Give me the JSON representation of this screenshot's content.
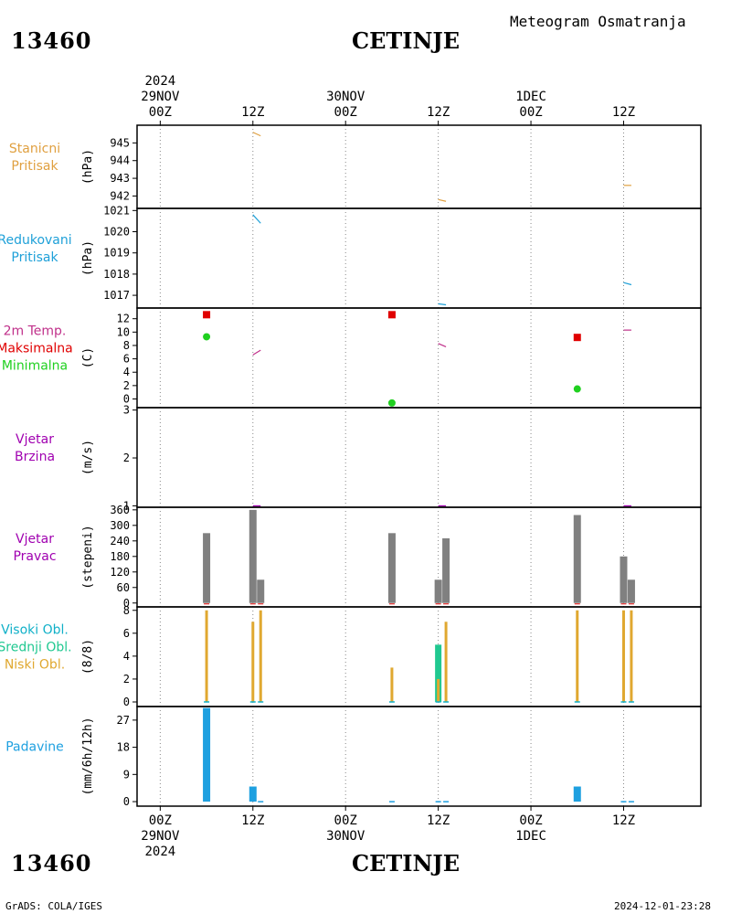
{
  "header": {
    "station_id": "13460",
    "city": "CETINJE",
    "title": "Meteogram Osmatranja"
  },
  "footer": {
    "station_id": "13460",
    "city": "CETINJE",
    "credit": "GrADS: COLA/IGES",
    "timestamp": "2024-12-01-23:28"
  },
  "time_axis": {
    "year": "2024",
    "ticks": [
      {
        "t": 0,
        "hour": "00Z",
        "date": "29NOV"
      },
      {
        "t": 12,
        "hour": "12Z",
        "date": ""
      },
      {
        "t": 24,
        "hour": "00Z",
        "date": "30NOV"
      },
      {
        "t": 36,
        "hour": "12Z",
        "date": ""
      },
      {
        "t": 48,
        "hour": "00Z",
        "date": "1DEC"
      },
      {
        "t": 60,
        "hour": "12Z",
        "date": ""
      }
    ],
    "t_min": -3,
    "t_max": 70
  },
  "colors": {
    "pressure": "#e0a040",
    "reduced": "#1ea0d8",
    "temp": "#c0308a",
    "tmax": "#e00000",
    "tmin": "#20d020",
    "wind": "#a000b0",
    "dir": "#808080",
    "high": "#10b0c8",
    "mid": "#20c890",
    "low": "#e0a830",
    "precip": "#1ea0e0"
  },
  "chart_data": [
    {
      "type": "line",
      "panel": "station_pressure",
      "label_lines": [
        "Stanicni",
        "Pritisak"
      ],
      "label_color": "#e0a040",
      "unit": "(hPa)",
      "ylim": [
        941.3,
        946.0
      ],
      "yticks": [
        942,
        943,
        944,
        945
      ],
      "segments": [
        {
          "x": [
            12,
            13
          ],
          "y": [
            945.6,
            945.4
          ]
        },
        {
          "x": [
            36,
            37
          ],
          "y": [
            941.8,
            941.7
          ]
        },
        {
          "x": [
            60,
            61
          ],
          "y": [
            942.6,
            942.6
          ]
        }
      ]
    },
    {
      "type": "line",
      "panel": "reduced_pressure",
      "label_lines": [
        "Redukovani",
        "Pritisak"
      ],
      "label_color": "#1ea0d8",
      "unit": "(hPa)",
      "ylim": [
        1016.4,
        1021.1
      ],
      "yticks": [
        1017,
        1018,
        1019,
        1020,
        1021
      ],
      "segments": [
        {
          "x": [
            12,
            13
          ],
          "y": [
            1020.8,
            1020.4
          ]
        },
        {
          "x": [
            36,
            37
          ],
          "y": [
            1016.6,
            1016.55
          ]
        },
        {
          "x": [
            60,
            61
          ],
          "y": [
            1017.6,
            1017.5
          ]
        }
      ]
    },
    {
      "type": "line",
      "panel": "temperature",
      "label_lines": [
        "2m Temp.",
        "Maksimalna",
        "Minimalna"
      ],
      "label_colors": [
        "#c0308a",
        "#e00000",
        "#20d020"
      ],
      "unit": "(C)",
      "ylim": [
        -1.3,
        13.6
      ],
      "yticks": [
        0,
        2,
        4,
        6,
        8,
        10,
        12
      ],
      "segments": [
        {
          "x": [
            12,
            13
          ],
          "y": [
            6.6,
            7.3
          ]
        },
        {
          "x": [
            36,
            37
          ],
          "y": [
            8.3,
            7.8
          ]
        },
        {
          "x": [
            60,
            61
          ],
          "y": [
            10.3,
            10.3
          ]
        }
      ],
      "tmax": [
        {
          "x": 6,
          "y": 12.6
        },
        {
          "x": 30,
          "y": 12.6
        },
        {
          "x": 54,
          "y": 9.2
        }
      ],
      "tmin": [
        {
          "x": 6,
          "y": 9.3
        },
        {
          "x": 30,
          "y": -0.6
        },
        {
          "x": 54,
          "y": 1.5
        }
      ]
    },
    {
      "type": "line",
      "panel": "wind_speed",
      "label_lines": [
        "Vjetar",
        "Brzina"
      ],
      "label_color": "#a000b0",
      "unit": "(m/s)",
      "ylim": [
        0.97,
        3.05
      ],
      "yticks": [
        1,
        2,
        3
      ],
      "segments": [
        {
          "x": [
            12,
            13
          ],
          "y": [
            1.0,
            1.0
          ]
        },
        {
          "x": [
            36,
            37
          ],
          "y": [
            1.0,
            1.0
          ]
        },
        {
          "x": [
            60,
            61
          ],
          "y": [
            1.0,
            1.0
          ]
        }
      ]
    },
    {
      "type": "bar",
      "panel": "wind_direction",
      "label_lines": [
        "Vjetar",
        "Pravac"
      ],
      "label_color": "#a000b0",
      "unit": "(stepeni)",
      "ylim": [
        -15,
        370
      ],
      "yticks": [
        0,
        60,
        120,
        180,
        240,
        300,
        360
      ],
      "bars": [
        {
          "x": 6,
          "value": 270
        },
        {
          "x": 12,
          "value": 360
        },
        {
          "x": 13,
          "value": 90
        },
        {
          "x": 30,
          "value": 270
        },
        {
          "x": 36,
          "value": 90
        },
        {
          "x": 37,
          "value": 250
        },
        {
          "x": 54,
          "value": 340
        },
        {
          "x": 60,
          "value": 180
        },
        {
          "x": 61,
          "value": 90
        }
      ]
    },
    {
      "type": "bar",
      "panel": "cloud_cover",
      "label_lines": [
        "Visoki Obl.",
        "Srednji Obl.",
        "Niski Obl."
      ],
      "label_colors": [
        "#10b0c8",
        "#20c890",
        "#e0a830"
      ],
      "unit": "(8/8)",
      "ylim": [
        -0.4,
        8.3
      ],
      "yticks": [
        0,
        2,
        4,
        6,
        8
      ],
      "series": [
        {
          "name": "Srednji Obl.",
          "bars": [
            {
              "x": 36,
              "value": 5
            }
          ]
        },
        {
          "name": "Niski Obl.",
          "bars": [
            {
              "x": 6,
              "value": 8
            },
            {
              "x": 12,
              "value": 7
            },
            {
              "x": 13,
              "value": 8
            },
            {
              "x": 30,
              "value": 3
            },
            {
              "x": 36,
              "value": 2
            },
            {
              "x": 37,
              "value": 7
            },
            {
              "x": 54,
              "value": 8
            },
            {
              "x": 60,
              "value": 8
            },
            {
              "x": 61,
              "value": 8
            }
          ]
        }
      ]
    },
    {
      "type": "bar",
      "panel": "precipitation",
      "label_lines": [
        "Padavine"
      ],
      "label_color": "#1ea0e0",
      "unit": "(mm/6h/12h)",
      "ylim": [
        -1.5,
        31.5
      ],
      "yticks": [
        0,
        9,
        18,
        27
      ],
      "bars": [
        {
          "x": 6,
          "value": 31
        },
        {
          "x": 12,
          "value": 5
        },
        {
          "x": 13,
          "value": 0.2
        },
        {
          "x": 30,
          "value": 0.2
        },
        {
          "x": 36,
          "value": 0.2
        },
        {
          "x": 37,
          "value": 0.2
        },
        {
          "x": 54,
          "value": 5
        },
        {
          "x": 60,
          "value": 0.2
        },
        {
          "x": 61,
          "value": 0.2
        }
      ]
    }
  ]
}
